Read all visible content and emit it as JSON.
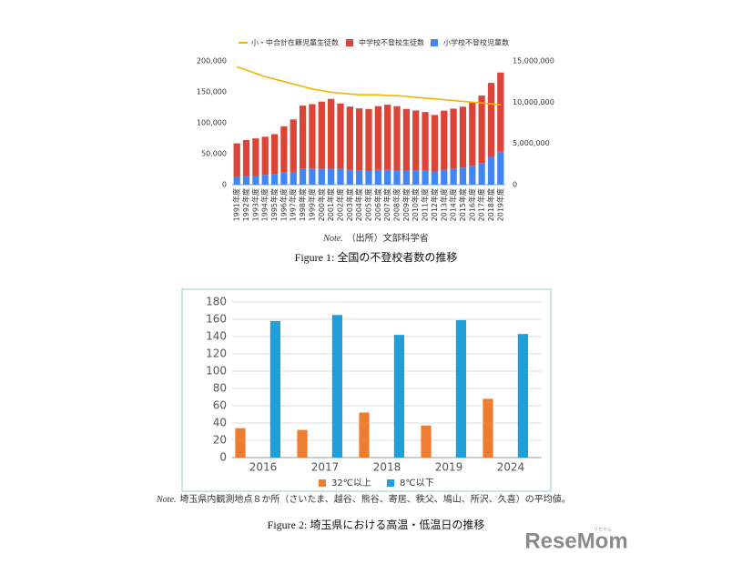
{
  "chart_data": [
    {
      "type": "bar",
      "stacked": true,
      "categories": [
        "1991年度",
        "1992年度",
        "1993年度",
        "1994年度",
        "1995年度",
        "1996年度",
        "1997年度",
        "1998年度",
        "1999年度",
        "2000年度",
        "2001年度",
        "2002年度",
        "2003年度",
        "2004年度",
        "2005年度",
        "2006年度",
        "2007年度",
        "2008年度",
        "2009年度",
        "2010年度",
        "2011年度",
        "2012年度",
        "2013年度",
        "2014年度",
        "2015年度",
        "2016年度",
        "2017年度",
        "2018年度",
        "2019年度"
      ],
      "series": [
        {
          "name": "小・中合計在籍児童生徒数",
          "type": "line",
          "axis": "y2",
          "color": "#f4b400",
          "values": [
            14300000,
            13900000,
            13500000,
            13100000,
            12800000,
            12500000,
            12200000,
            11900000,
            11600000,
            11400000,
            11200000,
            11100000,
            11000000,
            10900000,
            10900000,
            10900000,
            10800000,
            10800000,
            10700000,
            10600000,
            10500000,
            10400000,
            10300000,
            10200000,
            10100000,
            10000000,
            9900000,
            9800000,
            9700000
          ]
        },
        {
          "name": "中学校不登校生徒数",
          "color": "#db4437",
          "values": [
            54172,
            58421,
            60039,
            61663,
            65022,
            74853,
            84701,
            101675,
            104180,
            107913,
            112211,
            105383,
            102149,
            100040,
            99578,
            103069,
            105328,
            104153,
            100105,
            97428,
            94836,
            91446,
            95442,
            97033,
            98408,
            103235,
            108999,
            119687,
            127922
          ]
        },
        {
          "name": "小学校不登校児童数",
          "color": "#4285f4",
          "values": [
            12645,
            13710,
            14769,
            15786,
            16569,
            19498,
            20765,
            26017,
            26047,
            26373,
            26511,
            25869,
            24077,
            23318,
            22709,
            23825,
            23927,
            22652,
            22327,
            22463,
            22622,
            21243,
            24175,
            25864,
            27583,
            30448,
            35032,
            44841,
            53350
          ]
        }
      ],
      "ylim": [
        0,
        200000
      ],
      "yticks": [
        0,
        {
          "value": 50000,
          "label": "50,000"
        },
        {
          "value": 100000,
          "label": "100,000"
        },
        {
          "value": 150000,
          "label": "150,000"
        },
        {
          "value": 200000,
          "label": "200,000"
        }
      ],
      "y2lim": [
        0,
        15000000
      ],
      "y2ticks": [
        0,
        {
          "value": 5000000,
          "label": "5,000,000"
        },
        {
          "value": 10000000,
          "label": "10,000,000"
        },
        {
          "value": 15000000,
          "label": "15,000,000"
        }
      ],
      "grid": false,
      "note_label": "Note.",
      "note": "（出所）文部科学省",
      "caption": "Figure 1:  全国の不登校者数の推移"
    },
    {
      "type": "bar",
      "stacked": false,
      "categories": [
        "2016",
        "2017",
        "2018",
        "2019",
        "2024"
      ],
      "series": [
        {
          "name": "32℃以上",
          "color": "#ed7d31",
          "values": [
            34,
            32,
            52,
            37,
            68
          ]
        },
        {
          "name": "8℃以下",
          "color": "#1f9fd9",
          "values": [
            158,
            165,
            142,
            159,
            143
          ]
        }
      ],
      "ylim": [
        0,
        180
      ],
      "yticks": [
        0,
        20,
        40,
        60,
        80,
        100,
        120,
        140,
        160,
        180
      ],
      "grid": true,
      "note_label": "Note.",
      "note": "埼玉県内観測地点８か所（さいたま、越谷、熊谷、寄居、秩父、鳩山、所沢、久喜）の平均値。",
      "caption": "Figure 2:  埼玉県における高温・低温日の推移"
    }
  ],
  "logo": {
    "text": "ReseMom",
    "ruby": "リセマム"
  }
}
